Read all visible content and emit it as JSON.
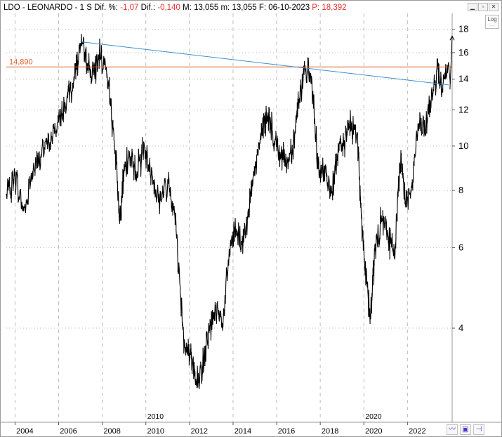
{
  "header": {
    "ticker": "LDO - LEONARDO -",
    "period": "1 S",
    "dif_pct_label": "Dif. %:",
    "dif_pct": "-1,07",
    "dif_label": "Dif.:",
    "dif": "-0,140",
    "max_label": "M:",
    "max": "13,055",
    "min_label": "m:",
    "min": "13,055",
    "date_label": "F:",
    "date": "06-10-2023",
    "price_label": "P:",
    "price": "18,392"
  },
  "toolbar": {
    "log_label": "Log",
    "log_sub": "....."
  },
  "colors": {
    "price": "#000000",
    "horizontal_line": "#e0622a",
    "trendline": "#3f8fcf",
    "grid": "#bdbdbd",
    "negative": "#e3342f"
  },
  "chart_data": {
    "type": "line",
    "scale": "log",
    "grid": true,
    "y_ticks": [
      4,
      6,
      8,
      10,
      12,
      14,
      16,
      18
    ],
    "ylim": [
      2.5,
      19.5
    ],
    "x_ticks": [
      "2004",
      "2006",
      "2008",
      "2010",
      "2012",
      "2014",
      "2016",
      "2018",
      "2020",
      "2022"
    ],
    "x_era_labels": [
      "2010",
      "2020"
    ],
    "xlim": [
      2003.6,
      2024.05
    ],
    "horizontal_line": {
      "value": 14.89,
      "label": "14,890"
    },
    "trendline": {
      "from": [
        2007.0,
        16.9
      ],
      "to": [
        2023.9,
        13.6
      ]
    },
    "series": [
      {
        "x": [
          2003.6,
          2004.0,
          2004.4,
          2004.8,
          2005.2,
          2005.6,
          2006.0,
          2006.3,
          2006.7,
          2007.0,
          2007.3,
          2007.6,
          2007.9,
          2008.3,
          2008.6,
          2008.8,
          2009.0,
          2009.3,
          2009.6,
          2009.9,
          2010.2,
          2010.6,
          2011.0,
          2011.3,
          2011.6,
          2011.8,
          2012.0,
          2012.3,
          2012.6,
          2012.9,
          2013.2,
          2013.5,
          2013.8,
          2014.1,
          2014.4,
          2014.7,
          2015.0,
          2015.3,
          2015.6,
          2015.9,
          2016.2,
          2016.5,
          2016.8,
          2017.0,
          2017.3,
          2017.6,
          2017.9,
          2018.2,
          2018.5,
          2018.8,
          2019.1,
          2019.4,
          2019.7,
          2019.9,
          2020.1,
          2020.3,
          2020.5,
          2020.8,
          2021.1,
          2021.4,
          2021.7,
          2021.9,
          2022.2,
          2022.5,
          2022.8,
          2023.1,
          2023.4,
          2023.6,
          2023.9
        ],
        "y": [
          7.8,
          8.6,
          7.2,
          8.8,
          9.6,
          10.2,
          11.3,
          12.4,
          14.2,
          16.6,
          15.2,
          14.3,
          16.0,
          13.5,
          9.8,
          7.0,
          8.8,
          9.5,
          8.8,
          9.9,
          8.9,
          7.6,
          8.3,
          7.4,
          4.7,
          3.6,
          3.5,
          3.1,
          3.3,
          3.9,
          4.5,
          4.0,
          5.6,
          6.7,
          6.1,
          7.3,
          8.6,
          10.8,
          11.8,
          10.2,
          9.6,
          9.2,
          10.4,
          12.4,
          14.7,
          14.0,
          8.9,
          8.7,
          7.9,
          9.4,
          10.3,
          11.1,
          10.7,
          6.9,
          5.1,
          4.2,
          5.9,
          6.9,
          6.4,
          5.8,
          9.8,
          7.5,
          8.1,
          11.2,
          10.8,
          13.0,
          14.7,
          13.2,
          14.89
        ]
      }
    ],
    "annotation_arrows": [
      {
        "from": [
          2023.95,
          13.3
        ],
        "to": [
          2024.05,
          17.4
        ]
      }
    ]
  }
}
